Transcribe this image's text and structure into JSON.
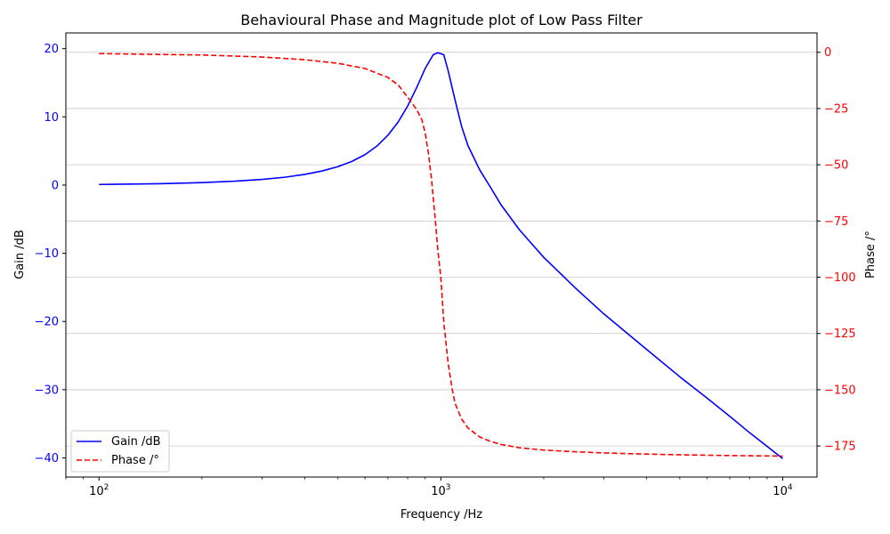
{
  "chart_data": {
    "type": "line",
    "title": "Behavioural  Phase and Magnitude plot of Low Pass Filter",
    "xlabel": "Frequency /Hz",
    "ylabel_left": "Gain /dB",
    "ylabel_right": "Phase /°",
    "xscale": "log",
    "xlim": [
      80,
      12600
    ],
    "ylim_left": [
      -42.8,
      22.3
    ],
    "ylim_right": [
      -188.8,
      8.6
    ],
    "x_ticks": [
      {
        "value": 100,
        "base": "10",
        "exp": "2"
      },
      {
        "value": 1000,
        "base": "10",
        "exp": "3"
      },
      {
        "value": 10000,
        "base": "10",
        "exp": "4"
      }
    ],
    "left_ticks": [
      {
        "value": 20,
        "label": "20"
      },
      {
        "value": 10,
        "label": "10"
      },
      {
        "value": 0,
        "label": "0"
      },
      {
        "value": -10,
        "label": "−10"
      },
      {
        "value": -20,
        "label": "−20"
      },
      {
        "value": -30,
        "label": "−30"
      },
      {
        "value": -40,
        "label": "−40"
      }
    ],
    "right_ticks": [
      {
        "value": 0,
        "label": "0"
      },
      {
        "value": -25,
        "label": "−25"
      },
      {
        "value": -50,
        "label": "−50"
      },
      {
        "value": -75,
        "label": "−75"
      },
      {
        "value": -100,
        "label": "−100"
      },
      {
        "value": -125,
        "label": "−125"
      },
      {
        "value": -150,
        "label": "−150"
      },
      {
        "value": -175,
        "label": "−175"
      }
    ],
    "grid": "horizontal (right axis)",
    "legend_position": "bottom-left",
    "series": [
      {
        "name": "Gain /dB",
        "axis": "left",
        "color": "#0000ff",
        "style": "solid",
        "x": [
          100,
          150,
          200,
          250,
          300,
          350,
          400,
          450,
          500,
          550,
          600,
          650,
          700,
          750,
          800,
          850,
          900,
          950,
          980,
          1020,
          1050,
          1100,
          1150,
          1200,
          1300,
          1400,
          1500,
          1700,
          2000,
          2500,
          3000,
          4000,
          5000,
          6000,
          7000,
          8000,
          9000,
          10000
        ],
        "values": [
          0.09,
          0.2,
          0.36,
          0.57,
          0.83,
          1.15,
          1.56,
          2.07,
          2.7,
          3.48,
          4.46,
          5.71,
          7.3,
          9.24,
          11.6,
          14.3,
          17.1,
          19.1,
          19.4,
          19.1,
          16.8,
          12.5,
          8.6,
          5.8,
          2.2,
          -0.4,
          -2.9,
          -6.6,
          -10.6,
          -15.3,
          -18.9,
          -24.1,
          -28.1,
          -31.2,
          -33.9,
          -36.3,
          -38.3,
          -40.1
        ]
      },
      {
        "name": "Phase /°",
        "axis": "right",
        "color": "#ff0000",
        "style": "dashed",
        "x": [
          100,
          200,
          300,
          400,
          500,
          600,
          700,
          750,
          800,
          850,
          880,
          900,
          920,
          940,
          960,
          980,
          1000,
          1020,
          1050,
          1080,
          1100,
          1150,
          1200,
          1300,
          1400,
          1500,
          1700,
          2000,
          2500,
          3000,
          4000,
          5000,
          6000,
          7000,
          8000,
          9000,
          10000
        ],
        "values": [
          -0.6,
          -1.2,
          -2.1,
          -3.3,
          -4.9,
          -7.2,
          -11.2,
          -14.5,
          -20.0,
          -25.5,
          -30.0,
          -36.0,
          -45.0,
          -57.0,
          -72.0,
          -88.0,
          -100.0,
          -120.0,
          -138.0,
          -150.0,
          -156.0,
          -163.0,
          -167.0,
          -171.0,
          -173.0,
          -174.3,
          -175.8,
          -176.8,
          -177.6,
          -178.1,
          -178.6,
          -178.9,
          -179.1,
          -179.25,
          -179.35,
          -179.42,
          -179.5
        ]
      }
    ]
  }
}
